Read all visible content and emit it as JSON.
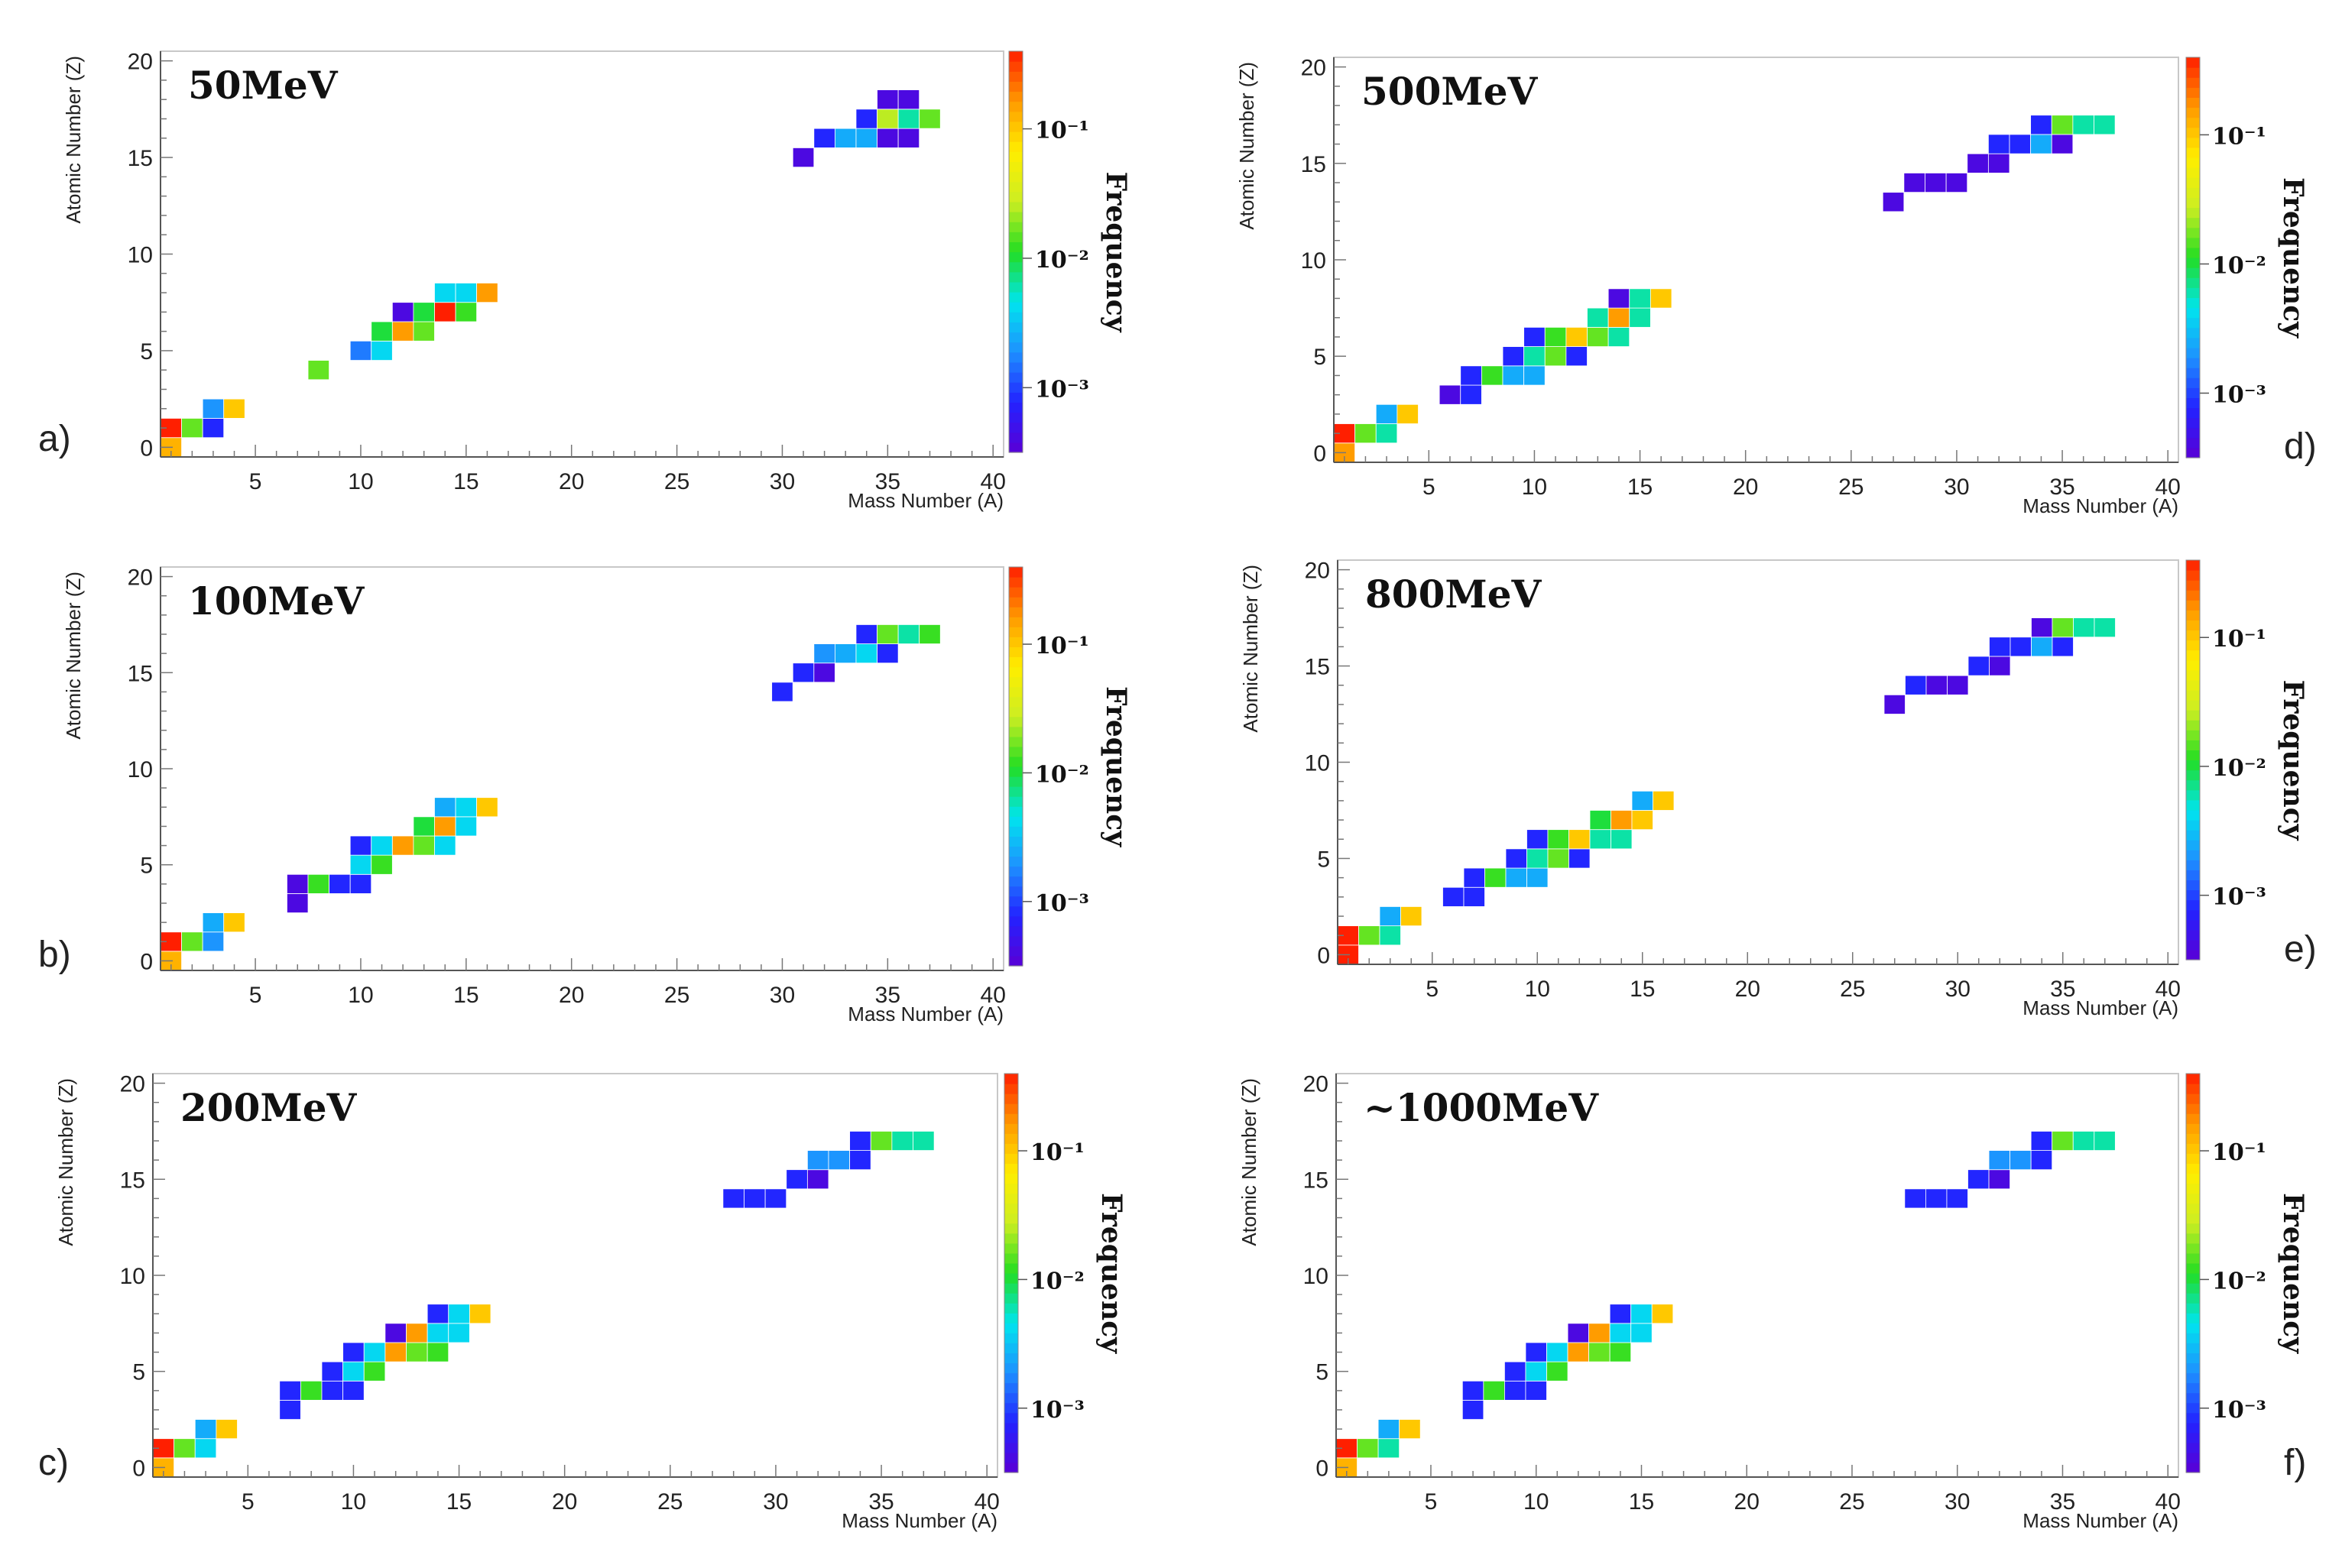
{
  "figure": {
    "colorscale": [
      "#5a00d6",
      "#2222ff",
      "#1e90ff",
      "#00e5ee",
      "#22dd22",
      "#ccee22",
      "#ffee00",
      "#ff9900",
      "#ff1f00"
    ],
    "cell_border_color": "#ffffff"
  },
  "chart_data": [
    {
      "type": "heatmap",
      "panel_label": "a)",
      "title": "50MeV",
      "xlabel": "Mass Number (A)",
      "ylabel": "Atomic Number (Z)",
      "colorbar_label": "Frequency",
      "colorbar_scale": "log",
      "colorbar_ticks": [
        "10⁻¹",
        "10⁻²",
        "10⁻³"
      ],
      "colorbar_tick_values": [
        -1,
        -2,
        -3
      ],
      "colorbar_range": [
        -3.5,
        -0.4
      ],
      "xlim": [
        0.5,
        40.5
      ],
      "ylim": [
        -0.5,
        20.5
      ],
      "xticks": [
        5,
        10,
        15,
        20,
        25,
        30,
        35,
        40
      ],
      "yticks": [
        0,
        5,
        10,
        15,
        20
      ],
      "cells": [
        [
          1,
          0,
          -0.9
        ],
        [
          1,
          1,
          -0.2
        ],
        [
          2,
          1,
          -1.8
        ],
        [
          3,
          1,
          -3.1
        ],
        [
          3,
          2,
          -2.7
        ],
        [
          4,
          2,
          -1.0
        ],
        [
          8,
          4,
          -1.8
        ],
        [
          10,
          5,
          -2.8
        ],
        [
          11,
          5,
          -2.4
        ],
        [
          11,
          6,
          -2.0
        ],
        [
          12,
          6,
          -0.8
        ],
        [
          12,
          7,
          -3.4
        ],
        [
          13,
          6,
          -1.8
        ],
        [
          13,
          7,
          -2.0
        ],
        [
          14,
          7,
          -0.2
        ],
        [
          14,
          8,
          -2.4
        ],
        [
          15,
          7,
          -1.9
        ],
        [
          15,
          8,
          -2.4
        ],
        [
          16,
          8,
          -0.8
        ],
        [
          31,
          15,
          -3.4
        ],
        [
          32,
          16,
          -3.1
        ],
        [
          33,
          16,
          -2.6
        ],
        [
          34,
          16,
          -2.6
        ],
        [
          34,
          17,
          -3.1
        ],
        [
          35,
          16,
          -3.4
        ],
        [
          35,
          17,
          -1.6
        ],
        [
          35,
          18,
          -3.4
        ],
        [
          36,
          16,
          -3.4
        ],
        [
          36,
          17,
          -2.2
        ],
        [
          36,
          18,
          -3.4
        ],
        [
          37,
          17,
          -1.8
        ]
      ]
    },
    {
      "type": "heatmap",
      "panel_label": "b)",
      "title": "100MeV",
      "xlabel": "Mass Number (A)",
      "ylabel": "Atomic Number (Z)",
      "colorbar_label": "Frequency",
      "colorbar_scale": "log",
      "colorbar_ticks": [
        "10⁻¹",
        "10⁻²",
        "10⁻³"
      ],
      "colorbar_tick_values": [
        -1,
        -2,
        -3
      ],
      "colorbar_range": [
        -3.5,
        -0.4
      ],
      "xlim": [
        0.5,
        40.5
      ],
      "ylim": [
        -0.5,
        20.5
      ],
      "xticks": [
        5,
        10,
        15,
        20,
        25,
        30,
        35,
        40
      ],
      "yticks": [
        0,
        5,
        10,
        15,
        20
      ],
      "cells": [
        [
          1,
          0,
          -0.9
        ],
        [
          1,
          1,
          -0.2
        ],
        [
          2,
          1,
          -1.8
        ],
        [
          3,
          1,
          -2.7
        ],
        [
          3,
          2,
          -2.6
        ],
        [
          4,
          2,
          -1.0
        ],
        [
          7,
          3,
          -3.4
        ],
        [
          7,
          4,
          -3.4
        ],
        [
          8,
          4,
          -1.9
        ],
        [
          9,
          4,
          -3.1
        ],
        [
          10,
          4,
          -3.1
        ],
        [
          10,
          5,
          -2.4
        ],
        [
          10,
          6,
          -3.1
        ],
        [
          11,
          5,
          -1.9
        ],
        [
          11,
          6,
          -2.4
        ],
        [
          12,
          6,
          -0.8
        ],
        [
          13,
          6,
          -1.8
        ],
        [
          13,
          7,
          -2.0
        ],
        [
          14,
          6,
          -2.4
        ],
        [
          14,
          7,
          -0.8
        ],
        [
          14,
          8,
          -2.6
        ],
        [
          15,
          7,
          -2.4
        ],
        [
          15,
          8,
          -2.4
        ],
        [
          16,
          8,
          -1.0
        ],
        [
          30,
          14,
          -3.1
        ],
        [
          31,
          15,
          -3.1
        ],
        [
          32,
          15,
          -3.4
        ],
        [
          32,
          16,
          -2.7
        ],
        [
          33,
          16,
          -2.6
        ],
        [
          34,
          16,
          -2.4
        ],
        [
          34,
          17,
          -3.1
        ],
        [
          35,
          16,
          -3.1
        ],
        [
          35,
          17,
          -1.8
        ],
        [
          36,
          17,
          -2.2
        ],
        [
          37,
          17,
          -1.9
        ]
      ]
    },
    {
      "type": "heatmap",
      "panel_label": "c)",
      "title": "200MeV",
      "xlabel": "Mass Number (A)",
      "ylabel": "Atomic Number (Z)",
      "colorbar_label": "Frequency",
      "colorbar_scale": "log",
      "colorbar_ticks": [
        "10⁻¹",
        "10⁻²",
        "10⁻³"
      ],
      "colorbar_tick_values": [
        -1,
        -2,
        -3
      ],
      "colorbar_range": [
        -3.5,
        -0.4
      ],
      "xlim": [
        0.5,
        40.5
      ],
      "ylim": [
        -0.5,
        20.5
      ],
      "xticks": [
        5,
        10,
        15,
        20,
        25,
        30,
        35,
        40
      ],
      "yticks": [
        0,
        5,
        10,
        15,
        20
      ],
      "cells": [
        [
          1,
          0,
          -0.9
        ],
        [
          1,
          1,
          -0.2
        ],
        [
          2,
          1,
          -1.8
        ],
        [
          3,
          1,
          -2.4
        ],
        [
          3,
          2,
          -2.6
        ],
        [
          4,
          2,
          -1.0
        ],
        [
          7,
          3,
          -3.1
        ],
        [
          7,
          4,
          -3.1
        ],
        [
          8,
          4,
          -1.9
        ],
        [
          9,
          4,
          -3.1
        ],
        [
          9,
          5,
          -3.1
        ],
        [
          10,
          4,
          -3.1
        ],
        [
          10,
          5,
          -2.4
        ],
        [
          10,
          6,
          -3.1
        ],
        [
          11,
          5,
          -1.9
        ],
        [
          11,
          6,
          -2.4
        ],
        [
          12,
          6,
          -0.8
        ],
        [
          12,
          7,
          -3.4
        ],
        [
          13,
          6,
          -1.8
        ],
        [
          13,
          7,
          -0.8
        ],
        [
          14,
          6,
          -1.9
        ],
        [
          14,
          7,
          -2.4
        ],
        [
          14,
          8,
          -3.1
        ],
        [
          15,
          7,
          -2.4
        ],
        [
          15,
          8,
          -2.4
        ],
        [
          16,
          8,
          -1.0
        ],
        [
          28,
          14,
          -3.1
        ],
        [
          29,
          14,
          -3.1
        ],
        [
          30,
          14,
          -3.1
        ],
        [
          31,
          15,
          -3.1
        ],
        [
          32,
          15,
          -3.4
        ],
        [
          32,
          16,
          -2.7
        ],
        [
          33,
          16,
          -2.7
        ],
        [
          34,
          16,
          -3.1
        ],
        [
          34,
          17,
          -3.1
        ],
        [
          35,
          17,
          -1.8
        ],
        [
          36,
          17,
          -2.2
        ],
        [
          37,
          17,
          -2.2
        ]
      ]
    },
    {
      "type": "heatmap",
      "panel_label": "d)",
      "title": "500MeV",
      "xlabel": "Mass Number (A)",
      "ylabel": "Atomic Number (Z)",
      "colorbar_label": "Frequency",
      "colorbar_scale": "log",
      "colorbar_ticks": [
        "10⁻¹",
        "10⁻²",
        "10⁻³"
      ],
      "colorbar_tick_values": [
        -1,
        -2,
        -3
      ],
      "colorbar_range": [
        -3.5,
        -0.4
      ],
      "xlim": [
        0.5,
        40.5
      ],
      "ylim": [
        -0.5,
        20.5
      ],
      "xticks": [
        5,
        10,
        15,
        20,
        25,
        30,
        35,
        40
      ],
      "yticks": [
        0,
        5,
        10,
        15,
        20
      ],
      "cells": [
        [
          1,
          0,
          -0.8
        ],
        [
          1,
          1,
          -0.2
        ],
        [
          2,
          1,
          -1.8
        ],
        [
          3,
          1,
          -2.2
        ],
        [
          3,
          2,
          -2.6
        ],
        [
          4,
          2,
          -1.0
        ],
        [
          6,
          3,
          -3.4
        ],
        [
          7,
          3,
          -3.1
        ],
        [
          7,
          4,
          -3.1
        ],
        [
          8,
          4,
          -1.9
        ],
        [
          9,
          4,
          -2.6
        ],
        [
          9,
          5,
          -3.1
        ],
        [
          10,
          4,
          -2.6
        ],
        [
          10,
          5,
          -2.2
        ],
        [
          10,
          6,
          -3.1
        ],
        [
          11,
          5,
          -1.8
        ],
        [
          11,
          6,
          -1.9
        ],
        [
          12,
          5,
          -3.1
        ],
        [
          12,
          6,
          -1.0
        ],
        [
          13,
          6,
          -1.8
        ],
        [
          13,
          7,
          -2.2
        ],
        [
          14,
          6,
          -2.2
        ],
        [
          14,
          7,
          -0.8
        ],
        [
          14,
          8,
          -3.4
        ],
        [
          15,
          7,
          -2.2
        ],
        [
          15,
          8,
          -2.2
        ],
        [
          16,
          8,
          -1.0
        ],
        [
          27,
          13,
          -3.4
        ],
        [
          28,
          14,
          -3.4
        ],
        [
          29,
          14,
          -3.4
        ],
        [
          30,
          14,
          -3.4
        ],
        [
          31,
          15,
          -3.4
        ],
        [
          32,
          15,
          -3.4
        ],
        [
          32,
          16,
          -3.1
        ],
        [
          33,
          16,
          -3.1
        ],
        [
          34,
          16,
          -2.6
        ],
        [
          34,
          17,
          -3.1
        ],
        [
          35,
          16,
          -3.4
        ],
        [
          35,
          17,
          -1.8
        ],
        [
          36,
          17,
          -2.2
        ],
        [
          37,
          17,
          -2.2
        ]
      ]
    },
    {
      "type": "heatmap",
      "panel_label": "e)",
      "title": "800MeV",
      "xlabel": "Mass Number (A)",
      "ylabel": "Atomic Number (Z)",
      "colorbar_label": "Frequency",
      "colorbar_scale": "log",
      "colorbar_ticks": [
        "10⁻¹",
        "10⁻²",
        "10⁻³"
      ],
      "colorbar_tick_values": [
        -1,
        -2,
        -3
      ],
      "colorbar_range": [
        -3.5,
        -0.4
      ],
      "xlim": [
        0.5,
        40.5
      ],
      "ylim": [
        -0.5,
        20.5
      ],
      "xticks": [
        5,
        10,
        15,
        20,
        25,
        30,
        35,
        40
      ],
      "yticks": [
        0,
        5,
        10,
        15,
        20
      ],
      "cells": [
        [
          1,
          0,
          -0.2
        ],
        [
          1,
          1,
          -0.2
        ],
        [
          2,
          1,
          -1.8
        ],
        [
          3,
          1,
          -2.2
        ],
        [
          3,
          2,
          -2.6
        ],
        [
          4,
          2,
          -1.0
        ],
        [
          6,
          3,
          -3.1
        ],
        [
          7,
          3,
          -3.1
        ],
        [
          7,
          4,
          -3.1
        ],
        [
          8,
          4,
          -1.9
        ],
        [
          9,
          4,
          -2.6
        ],
        [
          9,
          5,
          -3.1
        ],
        [
          10,
          4,
          -2.6
        ],
        [
          10,
          5,
          -2.2
        ],
        [
          10,
          6,
          -3.1
        ],
        [
          11,
          5,
          -1.8
        ],
        [
          11,
          6,
          -1.9
        ],
        [
          12,
          5,
          -3.1
        ],
        [
          12,
          6,
          -1.0
        ],
        [
          13,
          6,
          -2.2
        ],
        [
          13,
          7,
          -2.0
        ],
        [
          14,
          6,
          -2.2
        ],
        [
          14,
          7,
          -0.8
        ],
        [
          15,
          7,
          -1.0
        ],
        [
          15,
          8,
          -2.6
        ],
        [
          16,
          8,
          -1.0
        ],
        [
          27,
          13,
          -3.4
        ],
        [
          28,
          14,
          -3.1
        ],
        [
          29,
          14,
          -3.4
        ],
        [
          30,
          14,
          -3.4
        ],
        [
          31,
          15,
          -3.1
        ],
        [
          32,
          15,
          -3.4
        ],
        [
          32,
          16,
          -3.1
        ],
        [
          33,
          16,
          -3.1
        ],
        [
          34,
          16,
          -2.6
        ],
        [
          34,
          17,
          -3.4
        ],
        [
          35,
          16,
          -3.1
        ],
        [
          35,
          17,
          -1.8
        ],
        [
          36,
          17,
          -2.2
        ],
        [
          37,
          17,
          -2.2
        ]
      ]
    },
    {
      "type": "heatmap",
      "panel_label": "f)",
      "title": "~1000MeV",
      "xlabel": "Mass Number (A)",
      "ylabel": "Atomic Number (Z)",
      "colorbar_label": "Frequency",
      "colorbar_scale": "log",
      "colorbar_ticks": [
        "10⁻¹",
        "10⁻²",
        "10⁻³"
      ],
      "colorbar_tick_values": [
        -1,
        -2,
        -3
      ],
      "colorbar_range": [
        -3.5,
        -0.4
      ],
      "xlim": [
        0.5,
        40.5
      ],
      "ylim": [
        -0.5,
        20.5
      ],
      "xticks": [
        5,
        10,
        15,
        20,
        25,
        30,
        35,
        40
      ],
      "yticks": [
        0,
        5,
        10,
        15,
        20
      ],
      "cells": [
        [
          1,
          0,
          -0.9
        ],
        [
          1,
          1,
          -0.2
        ],
        [
          2,
          1,
          -1.8
        ],
        [
          3,
          1,
          -2.2
        ],
        [
          3,
          2,
          -2.6
        ],
        [
          4,
          2,
          -1.0
        ],
        [
          7,
          3,
          -3.1
        ],
        [
          7,
          4,
          -3.1
        ],
        [
          8,
          4,
          -1.9
        ],
        [
          9,
          4,
          -3.1
        ],
        [
          9,
          5,
          -3.1
        ],
        [
          10,
          4,
          -3.1
        ],
        [
          10,
          5,
          -2.4
        ],
        [
          10,
          6,
          -3.1
        ],
        [
          11,
          5,
          -1.9
        ],
        [
          11,
          6,
          -2.4
        ],
        [
          12,
          6,
          -0.8
        ],
        [
          12,
          7,
          -3.4
        ],
        [
          13,
          6,
          -1.8
        ],
        [
          13,
          7,
          -0.8
        ],
        [
          14,
          6,
          -1.9
        ],
        [
          14,
          7,
          -2.4
        ],
        [
          14,
          8,
          -3.1
        ],
        [
          15,
          7,
          -2.4
        ],
        [
          15,
          8,
          -2.4
        ],
        [
          16,
          8,
          -1.0
        ],
        [
          28,
          14,
          -3.1
        ],
        [
          29,
          14,
          -3.1
        ],
        [
          30,
          14,
          -3.1
        ],
        [
          31,
          15,
          -3.1
        ],
        [
          32,
          15,
          -3.4
        ],
        [
          32,
          16,
          -2.7
        ],
        [
          33,
          16,
          -2.7
        ],
        [
          34,
          16,
          -3.1
        ],
        [
          34,
          17,
          -3.1
        ],
        [
          35,
          17,
          -1.8
        ],
        [
          36,
          17,
          -2.2
        ],
        [
          37,
          17,
          -2.2
        ]
      ]
    }
  ]
}
